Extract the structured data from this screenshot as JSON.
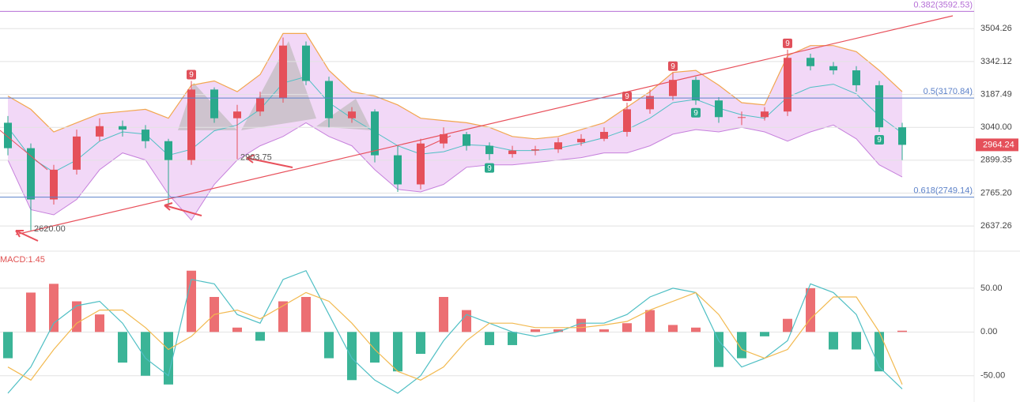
{
  "chart_data": [
    {
      "type": "candlestick",
      "log_scale": true,
      "grid": true,
      "up_color": "#e5505a",
      "down_color": "#2aa98c",
      "open": [
        3060,
        2950,
        2740,
        2860,
        3000,
        3045,
        3030,
        2980,
        2900,
        3210,
        3080,
        3110,
        3170,
        3420,
        3250,
        3080,
        3110,
        2920,
        2800,
        2970,
        3010,
        2960,
        2925,
        2940,
        2945,
        2975,
        2990,
        3020,
        3120,
        3180,
        3255,
        3160,
        3085,
        3085,
        3110,
        3360,
        3320,
        3300,
        3230,
        3040
      ],
      "high": [
        3090,
        2970,
        2880,
        3030,
        3080,
        3070,
        3050,
        2990,
        3250,
        3220,
        3140,
        3200,
        3460,
        3440,
        3270,
        3130,
        3120,
        2960,
        2990,
        3040,
        3020,
        2975,
        2960,
        2960,
        2995,
        3010,
        3040,
        3150,
        3210,
        3290,
        3270,
        3175,
        3110,
        3130,
        3400,
        3380,
        3340,
        3320,
        3250,
        3060
      ],
      "low": [
        2920,
        2620,
        2720,
        2840,
        2980,
        3000,
        2950,
        2710,
        2880,
        3060,
        2903.75,
        3090,
        3150,
        3230,
        3040,
        3060,
        2890,
        2770,
        2780,
        2950,
        2940,
        2900,
        2910,
        2920,
        2930,
        2960,
        2980,
        3000,
        3100,
        3160,
        3140,
        3060,
        3050,
        3070,
        3090,
        3300,
        3280,
        3200,
        3020,
        2900
      ],
      "close": [
        2950,
        2740,
        2860,
        3000,
        3045,
        3030,
        2980,
        2900,
        3210,
        3080,
        3110,
        3170,
        3420,
        3250,
        3080,
        3110,
        2920,
        2800,
        2970,
        3010,
        2960,
        2925,
        2940,
        2945,
        2975,
        2990,
        3020,
        3120,
        3180,
        3255,
        3160,
        3085,
        3085,
        3110,
        3360,
        3320,
        3300,
        3230,
        3040,
        2964.24
      ],
      "bands": {
        "upper": [
          3180,
          3120,
          3020,
          3060,
          3100,
          3110,
          3120,
          3080,
          3230,
          3250,
          3200,
          3280,
          3480,
          3480,
          3300,
          3200,
          3180,
          3140,
          3080,
          3070,
          3060,
          3040,
          3000,
          2990,
          3000,
          3030,
          3060,
          3130,
          3200,
          3290,
          3300,
          3230,
          3150,
          3140,
          3370,
          3420,
          3420,
          3390,
          3300,
          3200
        ],
        "middle": [
          3040,
          2910,
          2850,
          2900,
          2980,
          3020,
          3010,
          2920,
          2945,
          3025,
          3050,
          3120,
          3240,
          3270,
          3150,
          3080,
          3020,
          2960,
          2925,
          2935,
          2965,
          2960,
          2940,
          2940,
          2950,
          2970,
          2995,
          3030,
          3080,
          3150,
          3165,
          3125,
          3095,
          3080,
          3175,
          3220,
          3235,
          3190,
          3090,
          3015
        ],
        "lower": [
          2900,
          2700,
          2680,
          2740,
          2860,
          2930,
          2900,
          2760,
          2660,
          2800,
          2900,
          2960,
          3000,
          3060,
          3000,
          2960,
          2860,
          2780,
          2770,
          2800,
          2870,
          2880,
          2880,
          2890,
          2900,
          2910,
          2930,
          2930,
          2960,
          3010,
          3030,
          3020,
          3040,
          3020,
          2980,
          3020,
          3050,
          2990,
          2880,
          2830
        ],
        "upper_color": "#f2a64f",
        "middle_color": "#4fbfc4",
        "lower_color": "#c681dc",
        "fill_color": "#e7b8f0"
      },
      "ylim": [
        2552,
        3652
      ],
      "yticks": [
        3504.26,
        3342.12,
        3187.49,
        {
          "value": 3040,
          "label": "3040.00"
        },
        2899.35,
        {
          "value": 2765.2,
          "label": "2765.20"
        },
        2637.26
      ],
      "fib_levels": [
        {
          "value": 3592.53,
          "label": "0.382(3592.53)",
          "color": "#b56fd6"
        },
        {
          "value": 3170.84,
          "label": "0.5(3170.84)",
          "color": "#5d82c9"
        },
        {
          "value": 2749.14,
          "label": "0.618(2749.14)",
          "color": "#5d82c9"
        }
      ],
      "annotations": [
        {
          "candle": 1,
          "value": 2620,
          "label": "2620.00"
        },
        {
          "candle": 10,
          "value": 2903.75,
          "label": "2903.75"
        }
      ],
      "signals": [
        {
          "candle": 8,
          "label": "9",
          "side": "above"
        },
        {
          "candle": 27,
          "label": "9",
          "side": "above"
        },
        {
          "candle": 29,
          "label": "9",
          "side": "above"
        },
        {
          "candle": 34,
          "label": "9",
          "side": "above"
        },
        {
          "candle": 21,
          "label": "9",
          "side": "below"
        },
        {
          "candle": 30,
          "label": "9",
          "side": "below"
        },
        {
          "candle": 38,
          "label": "9",
          "side": "below"
        }
      ]
    },
    {
      "type": "macd",
      "title": "MACD:1.45",
      "histogram": [
        -30,
        45,
        55,
        35,
        20,
        -35,
        -50,
        -60,
        70,
        40,
        5,
        -10,
        35,
        40,
        -30,
        -55,
        -35,
        -45,
        -25,
        40,
        25,
        -15,
        -15,
        3,
        3,
        15,
        3,
        10,
        25,
        8,
        5,
        -40,
        -30,
        -5,
        15,
        50,
        -20,
        -20,
        -45,
        1.45
      ],
      "dif": [
        -70,
        -40,
        10,
        30,
        35,
        10,
        -30,
        -50,
        60,
        55,
        20,
        10,
        60,
        70,
        20,
        -30,
        -55,
        -70,
        -50,
        -10,
        20,
        10,
        0,
        -5,
        0,
        10,
        10,
        20,
        40,
        50,
        45,
        -10,
        -40,
        -30,
        -10,
        55,
        45,
        20,
        -40,
        -65
      ],
      "dea": [
        -40,
        -55,
        -20,
        10,
        25,
        25,
        5,
        -20,
        -5,
        20,
        25,
        15,
        30,
        45,
        35,
        10,
        -20,
        -45,
        -55,
        -40,
        -10,
        10,
        10,
        5,
        5,
        5,
        8,
        12,
        25,
        35,
        45,
        20,
        -20,
        -30,
        -20,
        15,
        40,
        40,
        0,
        -60
      ],
      "up_color": "#ec6f73",
      "down_color": "#3bb497",
      "dif_color": "#4fbfc4",
      "dea_color": "#f2b94f",
      "ylim": [
        -80,
        86
      ],
      "yticks": [
        {
          "value": 50,
          "label": "50.00"
        },
        {
          "value": 0,
          "label": "0.00"
        },
        {
          "value": -50,
          "label": "-50.00"
        }
      ]
    }
  ]
}
